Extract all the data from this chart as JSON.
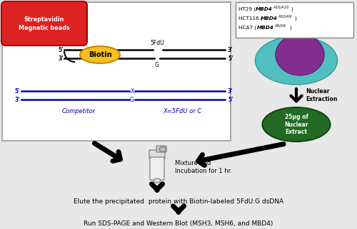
{
  "bg_color": "#e8e8e8",
  "white": "#ffffff",
  "red_bead": "#dd2222",
  "biotin_color": "#f5c020",
  "dna_blue": "#0000bb",
  "cell_color_outer": "#40bbbb",
  "cell_color_inner": "#882288",
  "nuclear_extract_color": "#236b23",
  "bead_text_line1": "Streptavidin",
  "bead_text_line2": "Magnetic beads",
  "biotin_text": "Biotin",
  "competitor_label": "Competitor",
  "x_label": "X=5FdU or C",
  "nuclear_extraction_label": "Nuclear\nExtraction",
  "nuclear_extract_text": "25μg of\nNuclear\nExtract",
  "step1_text": "Mixture and\nIncubation for 1 hr.",
  "step2_text": "Elute the precipitated  protein with Biotin-labeled 5FdU:G dsDNA",
  "step3_text": "Run SDS-PAGE and Western Blot (MSH3, MSH6, and MBD4)"
}
